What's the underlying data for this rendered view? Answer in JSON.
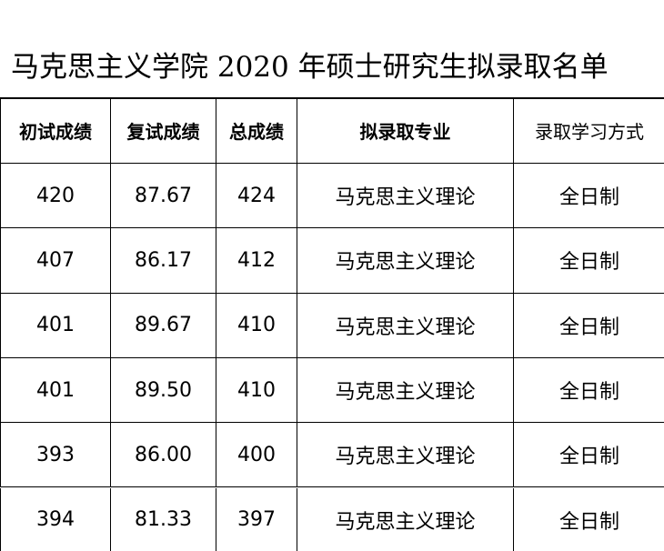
{
  "header": {
    "title": "马克思主义学院 2020 年硕士研究生拟录取名单"
  },
  "table": {
    "columns": [
      "初试成绩",
      "复试成绩",
      "总成绩",
      "拟录取专业",
      "录取学习方式"
    ],
    "rows": [
      [
        "420",
        "87.67",
        "424",
        "马克思主义理论",
        "全日制"
      ],
      [
        "407",
        "86.17",
        "412",
        "马克思主义理论",
        "全日制"
      ],
      [
        "401",
        "89.67",
        "410",
        "马克思主义理论",
        "全日制"
      ],
      [
        "401",
        "89.50",
        "410",
        "马克思主义理论",
        "全日制"
      ],
      [
        "393",
        "86.00",
        "400",
        "马克思主义理论",
        "全日制"
      ],
      [
        "394",
        "81.33",
        "397",
        "马克思主义理论",
        "全日制"
      ]
    ]
  }
}
